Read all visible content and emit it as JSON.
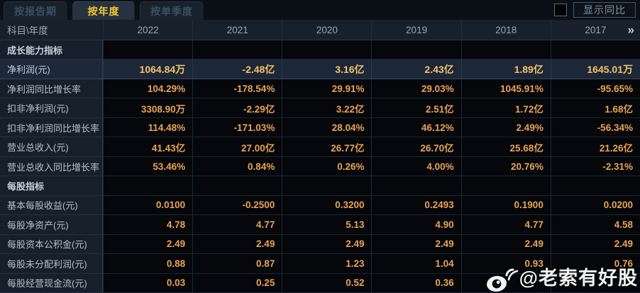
{
  "tabs": [
    {
      "id": "report-period",
      "label": "按报告期",
      "active": false
    },
    {
      "id": "annual",
      "label": "按年度",
      "active": true
    },
    {
      "id": "single-quarter",
      "label": "按单季度",
      "active": false
    }
  ],
  "controls": {
    "show_yoy_label": "显示同比",
    "show_yoy_checked": false
  },
  "table": {
    "corner_label": "科目\\年度",
    "years": [
      "2022",
      "2021",
      "2020",
      "2019",
      "2018",
      "2017"
    ],
    "more_icon": "»",
    "rows": [
      {
        "label": "成长能力指标",
        "type": "section",
        "values": [
          "",
          "",
          "",
          "",
          "",
          ""
        ]
      },
      {
        "label": "净利润(元)",
        "type": "data",
        "highlight": true,
        "values": [
          "1064.84万",
          "-2.48亿",
          "3.16亿",
          "2.43亿",
          "1.89亿",
          "1645.01万"
        ]
      },
      {
        "label": "净利润同比增长率",
        "type": "data",
        "values": [
          "104.29%",
          "-178.54%",
          "29.91%",
          "29.03%",
          "1045.91%",
          "-95.65%"
        ]
      },
      {
        "label": "扣非净利润(元)",
        "type": "data",
        "values": [
          "3308.90万",
          "-2.29亿",
          "3.22亿",
          "2.51亿",
          "1.72亿",
          "1.68亿"
        ]
      },
      {
        "label": "扣非净利润同比增长率",
        "type": "data",
        "values": [
          "114.48%",
          "-171.03%",
          "28.04%",
          "46.12%",
          "2.49%",
          "-56.34%"
        ]
      },
      {
        "label": "营业总收入(元)",
        "type": "data",
        "values": [
          "41.43亿",
          "27.00亿",
          "26.77亿",
          "26.70亿",
          "25.68亿",
          "21.26亿"
        ]
      },
      {
        "label": "营业总收入同比增长率",
        "type": "data",
        "values": [
          "53.46%",
          "0.84%",
          "0.26%",
          "4.00%",
          "20.76%",
          "-2.31%"
        ]
      },
      {
        "label": "每股指标",
        "type": "section",
        "values": [
          "",
          "",
          "",
          "",
          "",
          ""
        ]
      },
      {
        "label": "基本每股收益(元)",
        "type": "data",
        "values": [
          "0.0100",
          "-0.2500",
          "0.3200",
          "0.2493",
          "0.1900",
          "0.0200"
        ]
      },
      {
        "label": "每股净资产(元)",
        "type": "data",
        "values": [
          "4.78",
          "4.77",
          "5.13",
          "4.90",
          "4.77",
          "4.58"
        ]
      },
      {
        "label": "每股资本公积金(元)",
        "type": "data",
        "values": [
          "2.49",
          "2.49",
          "2.49",
          "2.49",
          "2.49",
          "2.49"
        ]
      },
      {
        "label": "每股未分配利润(元)",
        "type": "data",
        "values": [
          "0.88",
          "0.87",
          "1.23",
          "1.04",
          "0.93",
          "0.76"
        ]
      },
      {
        "label": "每股经营现金流(元)",
        "type": "data",
        "values": [
          "0.03",
          "0.25",
          "0.52",
          "0.36",
          "",
          ""
        ]
      }
    ]
  },
  "watermark": {
    "text": "@老索有好股",
    "icon": "weibo-icon"
  },
  "colors": {
    "accent_gold": "#f7c733",
    "value_orange": "#e9a355",
    "value_highlight_gold": "#f4c469",
    "highlight_row_bg": "#1c2737",
    "label_col_bg": "#161f2a",
    "header_bg": "#17202b",
    "data_bg": "#05070a"
  }
}
